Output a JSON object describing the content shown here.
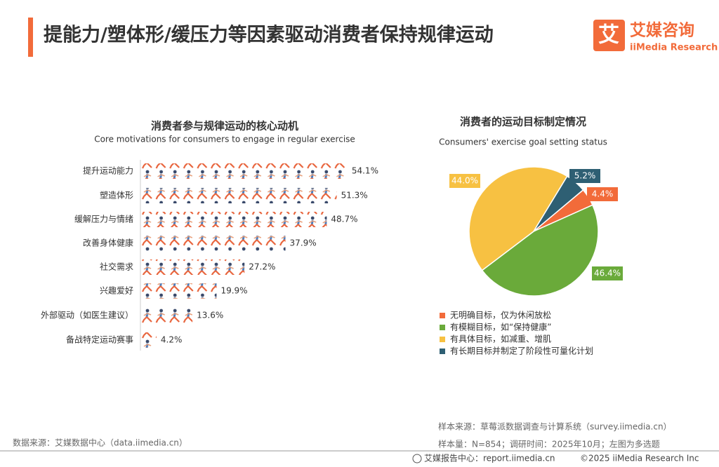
{
  "header": {
    "title": "提能力/塑体形/缓压力等因素驱动消费者保持规律运动",
    "logo_icon": "艾",
    "logo_name": "艾媒咨询",
    "logo_en": "iiMedia Research"
  },
  "chart_data": [
    {
      "type": "bar",
      "orientation": "horizontal",
      "title": "消费者参与规律运动的核心动机",
      "subtitle": "Core motivations for consumers to engage in regular exercise",
      "categories": [
        "提升运动能力",
        "塑造体形",
        "缓解压力与情绪",
        "改善身体健康",
        "社交需求",
        "兴趣爱好",
        "外部驱动（如医生建议）",
        "备战特定运动赛事"
      ],
      "values": [
        54.1,
        51.3,
        48.7,
        37.9,
        27.2,
        19.9,
        13.6,
        4.2
      ],
      "value_labels": [
        "54.1%",
        "51.3%",
        "48.7%",
        "37.9%",
        "27.2%",
        "19.9%",
        "13.6%",
        "4.2%"
      ],
      "color": "#e8643c"
    },
    {
      "type": "pie",
      "title": "消费者的运动目标制定情况",
      "subtitle": "Consumers' exercise goal setting status",
      "categories": [
        "无明确目标，仅为休闲放松",
        "有模糊目标，如“保持健康”",
        "有具体目标，如减重、增肌",
        "有长期目标并制定了阶段性可量化计划"
      ],
      "values": [
        4.4,
        46.4,
        44.0,
        5.2
      ],
      "value_labels": [
        "4.4%",
        "46.4%",
        "44.0%",
        "5.2%"
      ],
      "colors": [
        "#f26b3a",
        "#6aaa3a",
        "#f7c142",
        "#2e5f73"
      ]
    }
  ],
  "footer": {
    "source": "数据来源：艾媒数据中心（data.iimedia.cn）",
    "sample_source": "样本来源：草莓派数据调查与计算系统（survey.iimedia.cn）",
    "sample_size": "样本量：N=854；调研时间：2025年10月；左图为多选题",
    "report": "艾媒报告中心：report.iimedia.cn",
    "copyright": "©2025  iiMedia Research  Inc"
  }
}
